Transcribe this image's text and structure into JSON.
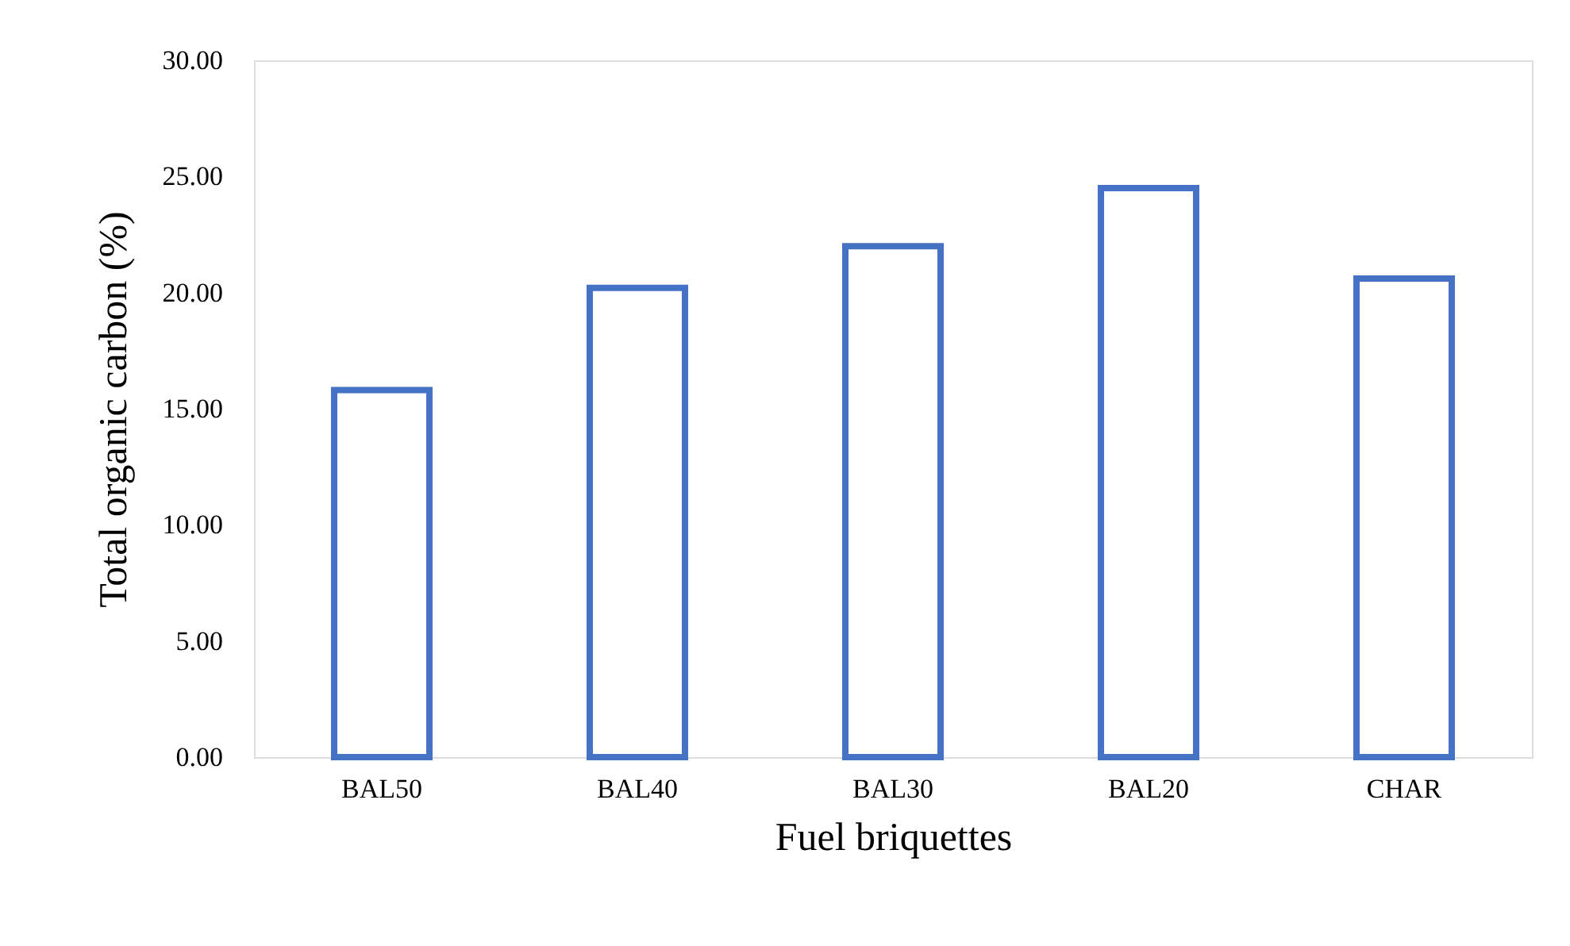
{
  "chart_data": {
    "type": "bar",
    "xlabel": "Fuel briquettes",
    "ylabel": "Total organic carbon (%)",
    "categories": [
      "BAL50",
      "BAL40",
      "BAL30",
      "BAL20",
      "CHAR"
    ],
    "values": [
      15.8,
      20.2,
      22.0,
      24.5,
      20.6
    ],
    "color": "#4472c4",
    "ylim": [
      0,
      30
    ],
    "yticks": [
      {
        "value": 0,
        "label": "0.00"
      },
      {
        "value": 5,
        "label": "5.00"
      },
      {
        "value": 10,
        "label": "10.00"
      },
      {
        "value": 15,
        "label": "15.00"
      },
      {
        "value": 20,
        "label": "20.00"
      },
      {
        "value": 25,
        "label": "25.00"
      },
      {
        "value": 30,
        "label": "30.00"
      }
    ],
    "grid": false
  }
}
